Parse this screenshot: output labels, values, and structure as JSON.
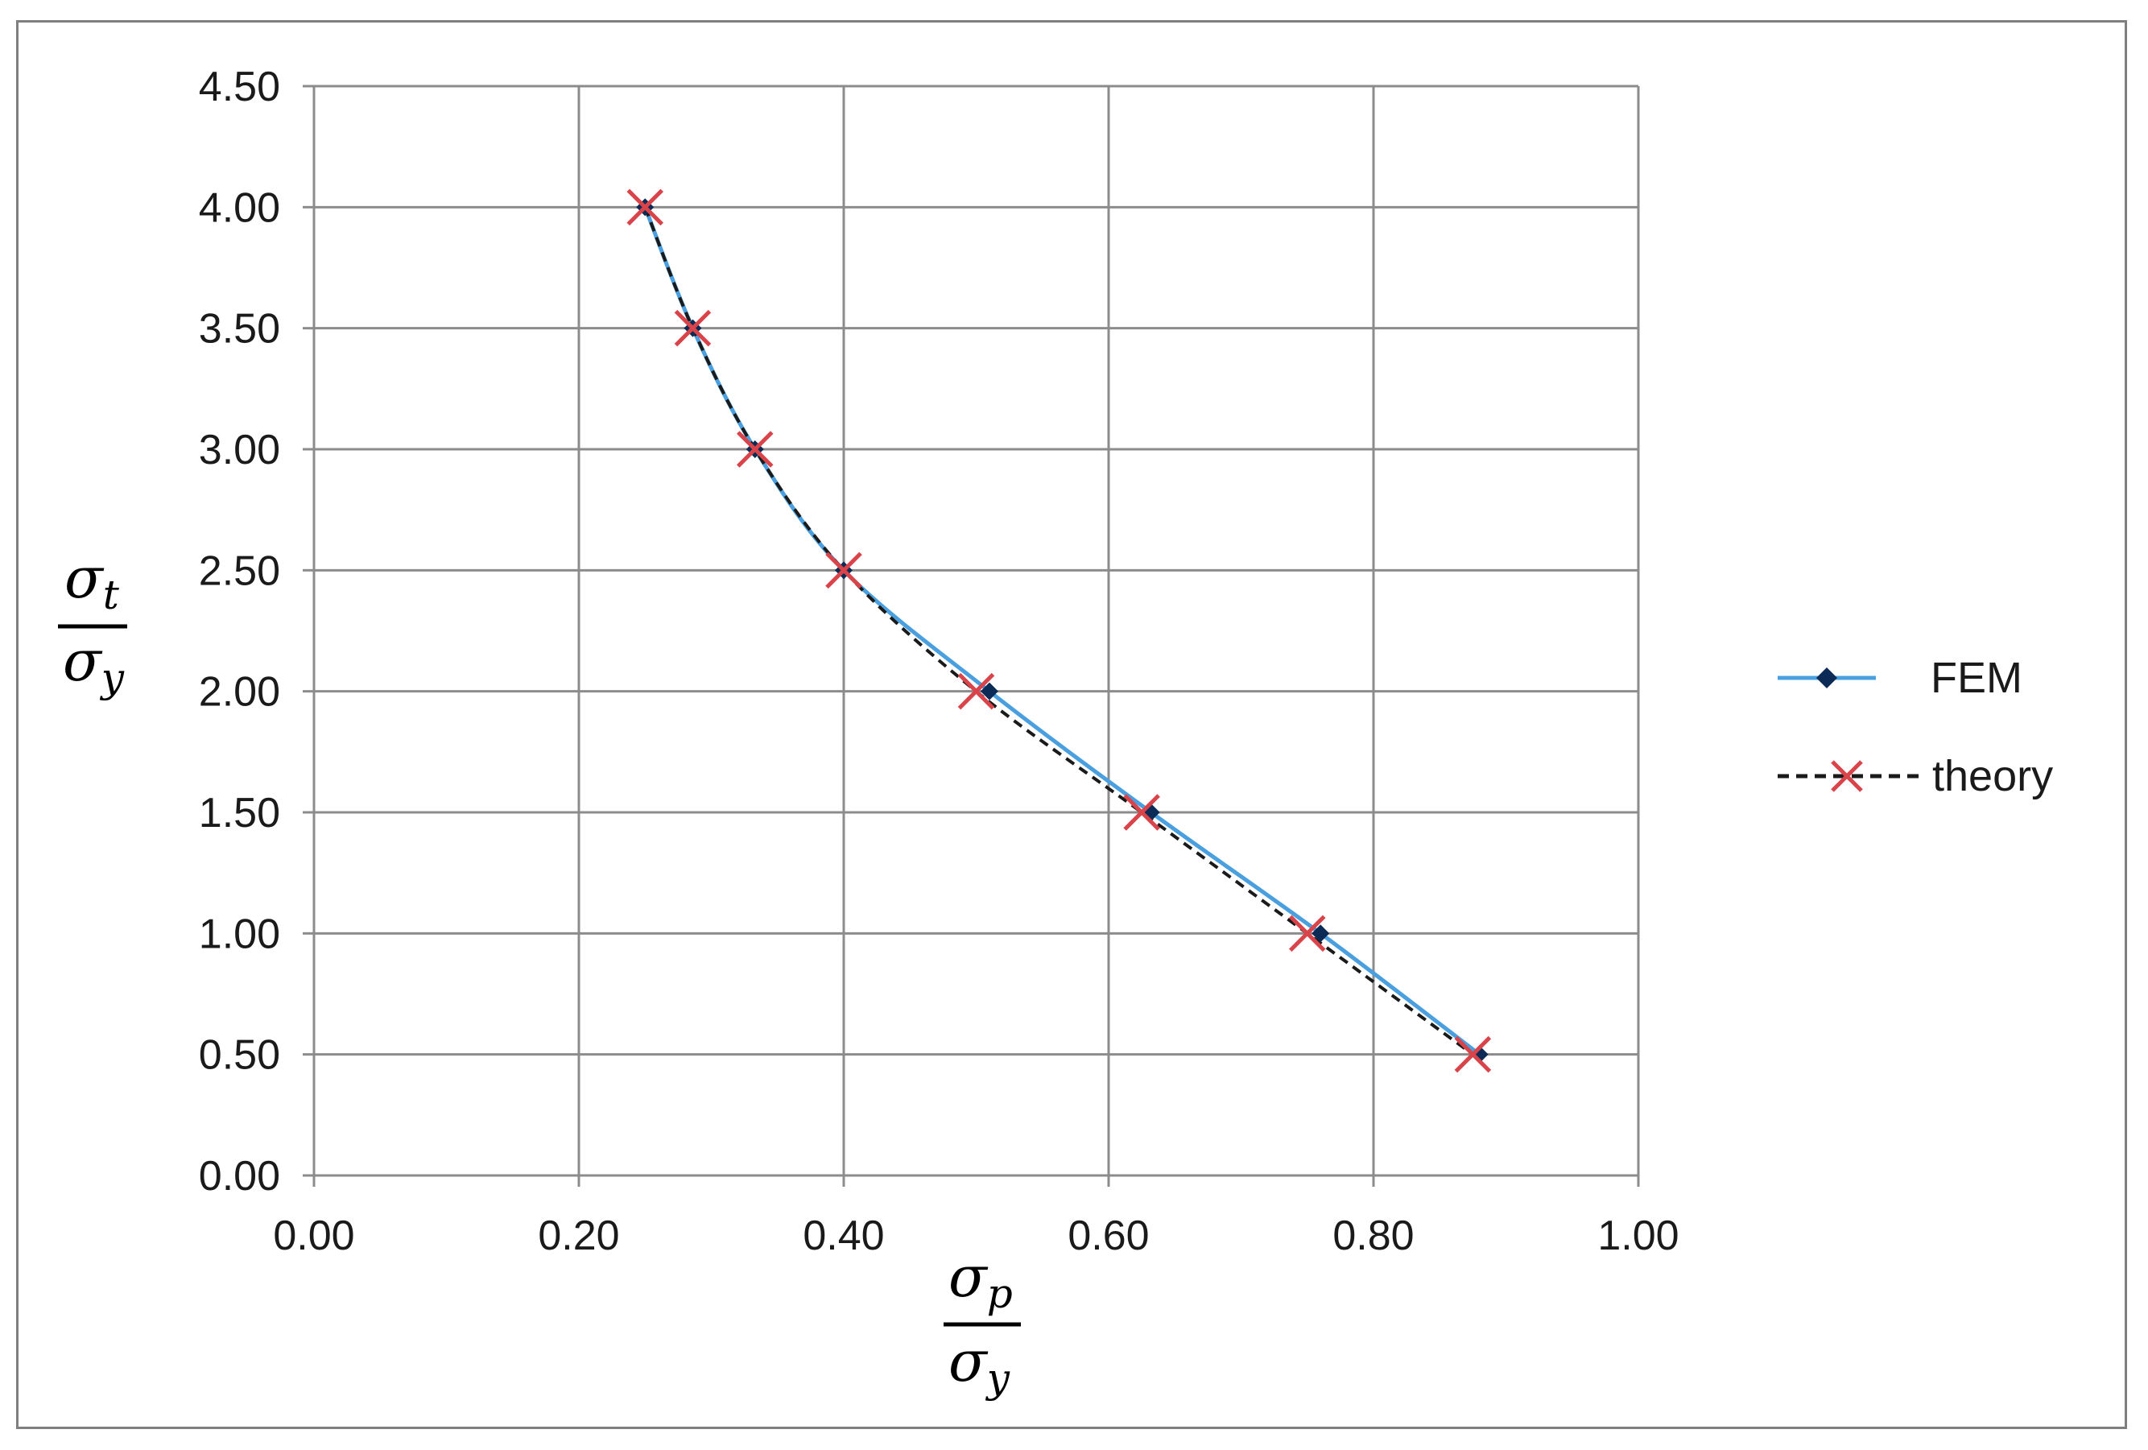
{
  "chart_data": {
    "type": "line",
    "title": "",
    "xlabel": {
      "numerator_base": "σ",
      "numerator_sub": "p",
      "denominator_base": "σ",
      "denominator_sub": "y"
    },
    "ylabel": {
      "numerator_base": "σ",
      "numerator_sub": "t",
      "denominator_base": "σ",
      "denominator_sub": "y"
    },
    "xlim": [
      0,
      1
    ],
    "ylim": [
      0,
      4.5
    ],
    "x_ticks": [
      "0.00",
      "0.20",
      "0.40",
      "0.60",
      "0.80",
      "1.00"
    ],
    "y_ticks": [
      "0.00",
      "0.50",
      "1.00",
      "1.50",
      "2.00",
      "2.50",
      "3.00",
      "3.50",
      "4.00",
      "4.50"
    ],
    "x_tick_values": [
      0,
      0.2,
      0.4,
      0.6,
      0.8,
      1.0
    ],
    "y_tick_values": [
      0,
      0.5,
      1.0,
      1.5,
      2.0,
      2.5,
      3.0,
      3.5,
      4.0,
      4.5
    ],
    "grid": true,
    "legend_position": "right",
    "series": [
      {
        "name": "FEM",
        "color": "#4a9fdf",
        "marker": "diamond",
        "line_style": "solid",
        "points": [
          {
            "x": 0.25,
            "y": 4.0
          },
          {
            "x": 0.286,
            "y": 3.5
          },
          {
            "x": 0.333,
            "y": 3.0
          },
          {
            "x": 0.4,
            "y": 2.5
          },
          {
            "x": 0.51,
            "y": 2.0
          },
          {
            "x": 0.632,
            "y": 1.5
          },
          {
            "x": 0.76,
            "y": 1.0
          },
          {
            "x": 0.88,
            "y": 0.5
          }
        ]
      },
      {
        "name": "theory",
        "color": "#1a1a1a",
        "marker_color": "#d9444a",
        "marker": "x",
        "line_style": "dashed",
        "points": [
          {
            "x": 0.25,
            "y": 4.0
          },
          {
            "x": 0.286,
            "y": 3.5
          },
          {
            "x": 0.333,
            "y": 3.0
          },
          {
            "x": 0.4,
            "y": 2.5
          },
          {
            "x": 0.5,
            "y": 2.0
          },
          {
            "x": 0.625,
            "y": 1.5
          },
          {
            "x": 0.75,
            "y": 1.0
          },
          {
            "x": 0.875,
            "y": 0.5
          }
        ]
      }
    ]
  }
}
